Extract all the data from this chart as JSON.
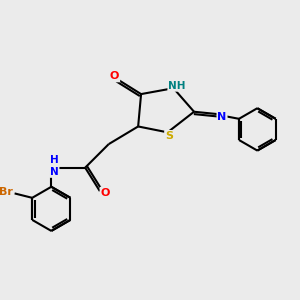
{
  "background_color": "#ebebeb",
  "bond_color": "#000000",
  "bond_width": 1.5,
  "atom_colors": {
    "O": "#ff0000",
    "N": "#0000ff",
    "S": "#ccaa00",
    "Br": "#cc6600",
    "NH": "#008080",
    "C": "#000000"
  },
  "font_size": 8.0,
  "figsize": [
    3.0,
    3.0
  ],
  "dpi": 100
}
